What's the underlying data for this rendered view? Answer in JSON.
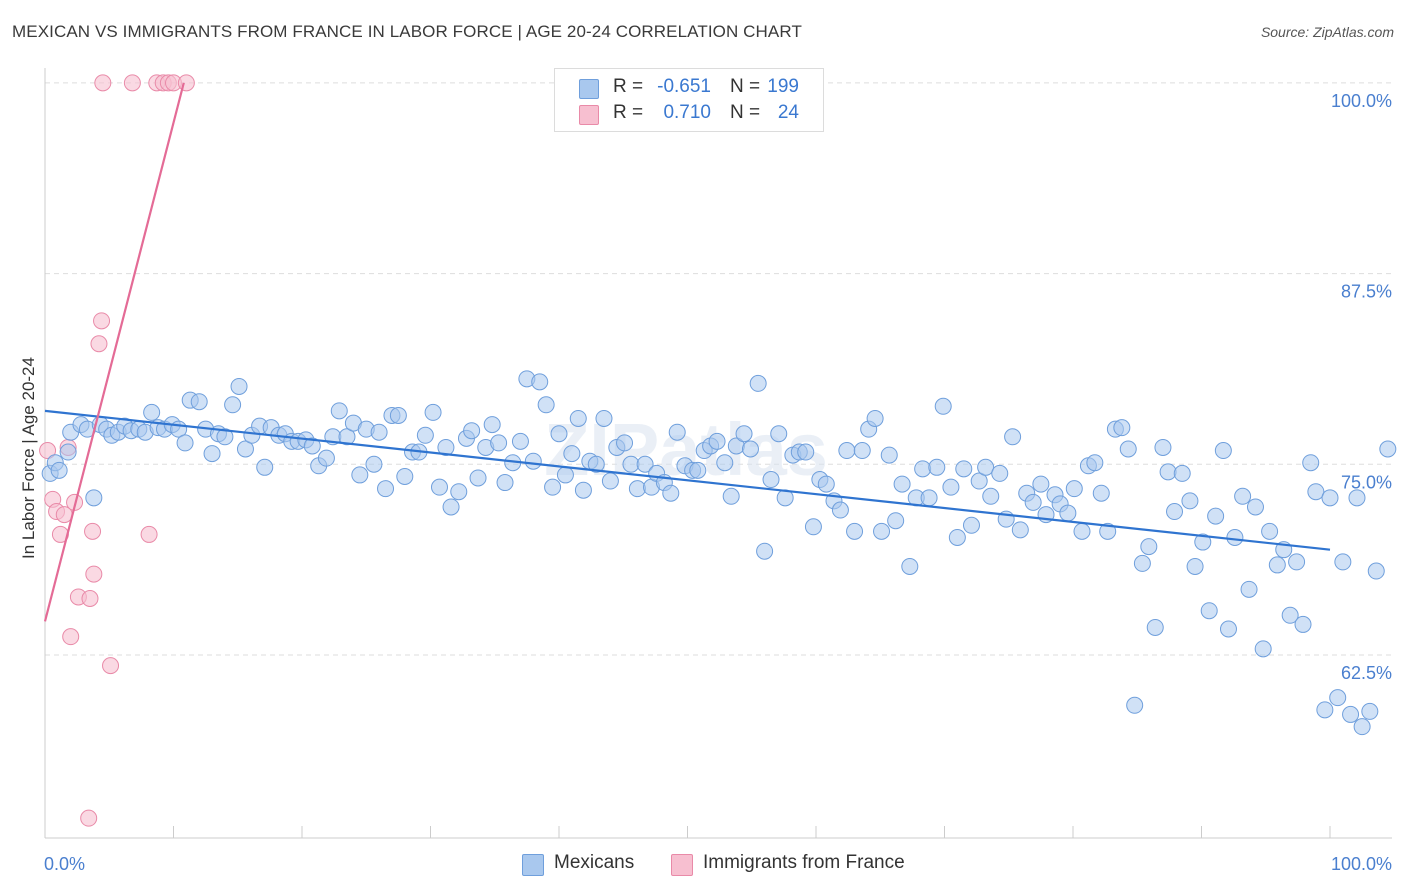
{
  "title": "MEXICAN VS IMMIGRANTS FROM FRANCE IN LABOR FORCE | AGE 20-24 CORRELATION CHART",
  "source": "Source: ZipAtlas.com",
  "watermark": "ZIPatlas",
  "colors": {
    "blue_fill": "#a9c8ee",
    "blue_stroke": "#6f9fdc",
    "blue_line": "#2f74d0",
    "pink_fill": "#f7bfd0",
    "pink_stroke": "#e98aa8",
    "pink_line": "#e46b96",
    "axis_text": "#4a7fcf",
    "grid": "#dddddd"
  },
  "legend": {
    "rows": [
      {
        "r_label": "R =",
        "r_value": "-0.651",
        "n_label": "N =",
        "n_value": "199",
        "color": "blue"
      },
      {
        "r_label": "R =",
        "r_value": "0.710",
        "n_label": "N =",
        "n_value": "24",
        "color": "pink"
      }
    ]
  },
  "bottom_legend": [
    "Mexicans",
    "Immigrants from France"
  ],
  "chart_data": {
    "type": "scatter",
    "title": "MEXICAN VS IMMIGRANTS FROM FRANCE IN LABOR FORCE | AGE 20-24 CORRELATION CHART",
    "xlabel": "",
    "ylabel": "In Labor Force | Age 20-24",
    "xlim": [
      0,
      100
    ],
    "ylim": [
      50.5,
      101.5
    ],
    "x_tick_labels": [
      "0.0%",
      "100.0%"
    ],
    "y_ticks": [
      62.5,
      75.0,
      87.5,
      100.0
    ],
    "y_tick_labels": [
      "62.5%",
      "75.0%",
      "87.5%",
      "100.0%"
    ],
    "grid": true,
    "legend_position": "top-center",
    "series": [
      {
        "name": "Mexicans",
        "color": "#a9c8ee",
        "trend": {
          "x": [
            0,
            100
          ],
          "y": [
            78.5,
            69.4
          ]
        },
        "points": [
          [
            0.4,
            74.4
          ],
          [
            0.8,
            75.1
          ],
          [
            1.1,
            74.6
          ],
          [
            1.8,
            75.8
          ],
          [
            2.0,
            77.1
          ],
          [
            2.8,
            77.6
          ],
          [
            3.3,
            77.3
          ],
          [
            3.8,
            72.8
          ],
          [
            4.3,
            77.6
          ],
          [
            4.8,
            77.3
          ],
          [
            5.2,
            76.9
          ],
          [
            5.7,
            77.1
          ],
          [
            6.2,
            77.5
          ],
          [
            6.7,
            77.2
          ],
          [
            7.3,
            77.3
          ],
          [
            7.8,
            77.1
          ],
          [
            8.3,
            78.4
          ],
          [
            8.8,
            77.4
          ],
          [
            9.3,
            77.3
          ],
          [
            9.9,
            77.6
          ],
          [
            10.4,
            77.3
          ],
          [
            10.9,
            76.4
          ],
          [
            11.3,
            79.2
          ],
          [
            12.0,
            79.1
          ],
          [
            12.5,
            77.3
          ],
          [
            13.0,
            75.7
          ],
          [
            13.5,
            77.0
          ],
          [
            14.0,
            76.8
          ],
          [
            14.6,
            78.9
          ],
          [
            15.1,
            80.1
          ],
          [
            15.6,
            76.0
          ],
          [
            16.1,
            76.9
          ],
          [
            16.7,
            77.5
          ],
          [
            17.1,
            74.8
          ],
          [
            17.6,
            77.4
          ],
          [
            18.2,
            76.9
          ],
          [
            18.7,
            77.0
          ],
          [
            19.2,
            76.5
          ],
          [
            19.7,
            76.5
          ],
          [
            20.3,
            76.6
          ],
          [
            20.8,
            76.2
          ],
          [
            21.3,
            74.9
          ],
          [
            21.9,
            75.4
          ],
          [
            22.4,
            76.8
          ],
          [
            22.9,
            78.5
          ],
          [
            23.5,
            76.8
          ],
          [
            24.0,
            77.7
          ],
          [
            24.5,
            74.3
          ],
          [
            25.0,
            77.3
          ],
          [
            25.6,
            75.0
          ],
          [
            26.0,
            77.1
          ],
          [
            26.5,
            73.4
          ],
          [
            27.0,
            78.2
          ],
          [
            27.5,
            78.2
          ],
          [
            28.0,
            74.2
          ],
          [
            28.6,
            75.8
          ],
          [
            29.1,
            75.8
          ],
          [
            29.6,
            76.9
          ],
          [
            30.2,
            78.4
          ],
          [
            30.7,
            73.5
          ],
          [
            31.2,
            76.1
          ],
          [
            31.6,
            72.2
          ],
          [
            32.2,
            73.2
          ],
          [
            32.8,
            76.7
          ],
          [
            33.2,
            77.2
          ],
          [
            33.7,
            74.1
          ],
          [
            34.3,
            76.1
          ],
          [
            34.8,
            77.6
          ],
          [
            35.3,
            76.4
          ],
          [
            35.8,
            73.8
          ],
          [
            36.4,
            75.1
          ],
          [
            37.0,
            76.5
          ],
          [
            37.5,
            80.6
          ],
          [
            38.0,
            75.2
          ],
          [
            38.5,
            80.4
          ],
          [
            39.0,
            78.9
          ],
          [
            39.5,
            73.5
          ],
          [
            40.0,
            77.0
          ],
          [
            40.5,
            74.3
          ],
          [
            41.0,
            75.7
          ],
          [
            41.5,
            78.0
          ],
          [
            41.9,
            73.3
          ],
          [
            42.4,
            75.2
          ],
          [
            42.9,
            75.0
          ],
          [
            43.5,
            78.0
          ],
          [
            44.0,
            73.9
          ],
          [
            44.5,
            76.1
          ],
          [
            45.1,
            76.4
          ],
          [
            45.6,
            75.0
          ],
          [
            46.1,
            73.4
          ],
          [
            46.7,
            75.0
          ],
          [
            47.2,
            73.5
          ],
          [
            47.6,
            74.4
          ],
          [
            48.2,
            73.8
          ],
          [
            48.7,
            73.1
          ],
          [
            49.2,
            77.1
          ],
          [
            49.8,
            74.9
          ],
          [
            50.4,
            74.6
          ],
          [
            50.8,
            74.6
          ],
          [
            51.3,
            75.9
          ],
          [
            51.8,
            76.2
          ],
          [
            52.3,
            76.5
          ],
          [
            52.9,
            75.1
          ],
          [
            53.4,
            72.9
          ],
          [
            53.8,
            76.2
          ],
          [
            54.4,
            77.0
          ],
          [
            54.9,
            76.0
          ],
          [
            55.5,
            80.3
          ],
          [
            56.0,
            69.3
          ],
          [
            56.5,
            74.0
          ],
          [
            57.1,
            77.0
          ],
          [
            57.6,
            72.8
          ],
          [
            58.2,
            75.6
          ],
          [
            58.7,
            75.8
          ],
          [
            59.2,
            75.8
          ],
          [
            59.8,
            70.9
          ],
          [
            60.3,
            74.0
          ],
          [
            60.8,
            73.7
          ],
          [
            61.4,
            72.6
          ],
          [
            61.9,
            72.0
          ],
          [
            62.4,
            75.9
          ],
          [
            63.0,
            70.6
          ],
          [
            63.6,
            75.9
          ],
          [
            64.1,
            77.3
          ],
          [
            64.6,
            78.0
          ],
          [
            65.1,
            70.6
          ],
          [
            65.7,
            75.6
          ],
          [
            66.2,
            71.3
          ],
          [
            66.7,
            73.7
          ],
          [
            67.3,
            68.3
          ],
          [
            67.8,
            72.8
          ],
          [
            68.3,
            74.7
          ],
          [
            68.8,
            72.8
          ],
          [
            69.4,
            74.8
          ],
          [
            69.9,
            78.8
          ],
          [
            70.5,
            73.5
          ],
          [
            71.0,
            70.2
          ],
          [
            71.5,
            74.7
          ],
          [
            72.1,
            71.0
          ],
          [
            72.7,
            73.9
          ],
          [
            73.2,
            74.8
          ],
          [
            73.6,
            72.9
          ],
          [
            74.3,
            74.4
          ],
          [
            74.8,
            71.4
          ],
          [
            75.3,
            76.8
          ],
          [
            75.9,
            70.7
          ],
          [
            76.4,
            73.1
          ],
          [
            76.9,
            72.5
          ],
          [
            77.5,
            73.7
          ],
          [
            77.9,
            71.7
          ],
          [
            78.6,
            73.0
          ],
          [
            79.0,
            72.4
          ],
          [
            79.6,
            71.8
          ],
          [
            80.1,
            73.4
          ],
          [
            80.7,
            70.6
          ],
          [
            81.2,
            74.9
          ],
          [
            81.7,
            75.1
          ],
          [
            82.2,
            73.1
          ],
          [
            82.7,
            70.6
          ],
          [
            83.3,
            77.3
          ],
          [
            83.8,
            77.4
          ],
          [
            84.3,
            76.0
          ],
          [
            84.8,
            59.2
          ],
          [
            85.4,
            68.5
          ],
          [
            85.9,
            69.6
          ],
          [
            86.4,
            64.3
          ],
          [
            87.0,
            76.1
          ],
          [
            87.4,
            74.5
          ],
          [
            87.9,
            71.9
          ],
          [
            88.5,
            74.4
          ],
          [
            89.1,
            72.6
          ],
          [
            89.5,
            68.3
          ],
          [
            90.1,
            69.9
          ],
          [
            90.6,
            65.4
          ],
          [
            91.1,
            71.6
          ],
          [
            91.7,
            75.9
          ],
          [
            92.1,
            64.2
          ],
          [
            92.6,
            70.2
          ],
          [
            93.2,
            72.9
          ],
          [
            93.7,
            66.8
          ],
          [
            94.2,
            72.2
          ],
          [
            94.8,
            62.9
          ],
          [
            95.3,
            70.6
          ],
          [
            95.9,
            68.4
          ],
          [
            96.4,
            69.4
          ],
          [
            96.9,
            65.1
          ],
          [
            97.4,
            68.6
          ],
          [
            97.9,
            64.5
          ],
          [
            98.5,
            75.1
          ],
          [
            98.9,
            73.2
          ],
          [
            99.6,
            58.9
          ],
          [
            100.0,
            72.8
          ],
          [
            100.6,
            59.7
          ],
          [
            101.0,
            68.6
          ],
          [
            101.6,
            58.6
          ],
          [
            102.1,
            72.8
          ],
          [
            102.5,
            57.8
          ],
          [
            103.1,
            58.8
          ],
          [
            103.6,
            68.0
          ],
          [
            104.5,
            76.0
          ]
        ]
      },
      {
        "name": "Immigrants from France",
        "color": "#f7bfd0",
        "trend": {
          "x": [
            0,
            10.8
          ],
          "y": [
            64.7,
            100.0
          ]
        },
        "points": [
          [
            0.2,
            75.9
          ],
          [
            0.6,
            72.7
          ],
          [
            0.9,
            71.9
          ],
          [
            1.2,
            70.4
          ],
          [
            1.5,
            71.7
          ],
          [
            1.8,
            76.1
          ],
          [
            2.0,
            63.7
          ],
          [
            2.3,
            72.5
          ],
          [
            2.6,
            66.3
          ],
          [
            3.4,
            51.8
          ],
          [
            3.5,
            66.2
          ],
          [
            3.7,
            70.6
          ],
          [
            3.8,
            67.8
          ],
          [
            4.2,
            82.9
          ],
          [
            4.4,
            84.4
          ],
          [
            4.5,
            100.0
          ],
          [
            5.1,
            61.8
          ],
          [
            6.8,
            100.0
          ],
          [
            8.1,
            70.4
          ],
          [
            8.7,
            100.0
          ],
          [
            9.2,
            100.0
          ],
          [
            9.6,
            100.0
          ],
          [
            10.0,
            100.0
          ],
          [
            11.0,
            100.0
          ]
        ]
      }
    ]
  }
}
